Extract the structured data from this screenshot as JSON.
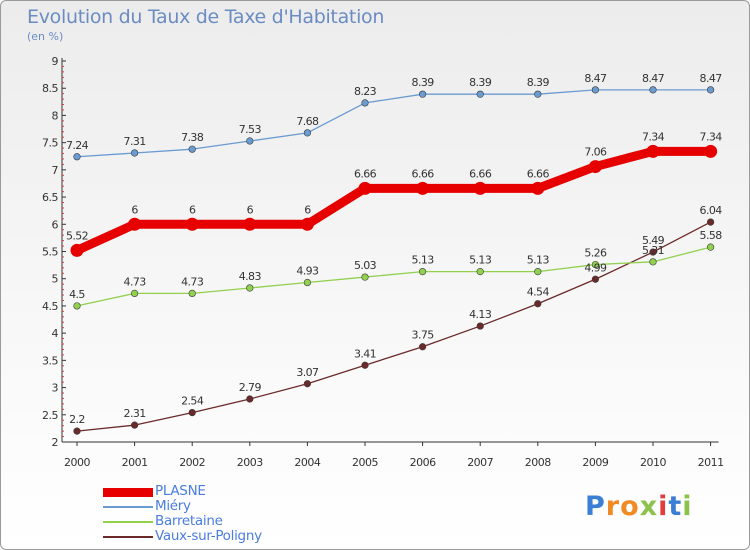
{
  "title": "Evolution du Taux de Taxe d'Habitation",
  "unit": "(en %)",
  "brand": "Proxiti",
  "chart_data": {
    "type": "line",
    "x": [
      "2000",
      "2001",
      "2002",
      "2003",
      "2004",
      "2005",
      "2006",
      "2007",
      "2008",
      "2009",
      "2010",
      "2011"
    ],
    "yticks": [
      "2",
      "2.5",
      "3",
      "3.5",
      "4",
      "4.5",
      "5",
      "5.5",
      "6",
      "6.5",
      "7",
      "7.5",
      "8",
      "8.5",
      "9"
    ],
    "ylim": [
      2,
      9
    ],
    "grid": false,
    "legend": "bottom-left",
    "series": [
      {
        "name": "PLASNE",
        "color": "#e60000",
        "values": [
          5.52,
          6,
          6,
          6,
          6,
          6.66,
          6.66,
          6.66,
          6.66,
          7.06,
          7.34,
          7.34
        ],
        "labels": [
          "5.52",
          "6",
          "6",
          "6",
          "6",
          "6.66",
          "6.66",
          "6.66",
          "6.66",
          "7.06",
          "7.34",
          "7.34"
        ]
      },
      {
        "name": "Miéry",
        "color": "#6a9bd1",
        "values": [
          7.24,
          7.31,
          7.38,
          7.53,
          7.68,
          8.23,
          8.39,
          8.39,
          8.39,
          8.47,
          8.47,
          8.47
        ],
        "labels": [
          "7.24",
          "7.31",
          "7.38",
          "7.53",
          "7.68",
          "8.23",
          "8.39",
          "8.39",
          "8.39",
          "8.47",
          "8.47",
          "8.47"
        ]
      },
      {
        "name": "Barretaine",
        "color": "#92d050",
        "values": [
          4.5,
          4.73,
          4.73,
          4.83,
          4.93,
          5.03,
          5.13,
          5.13,
          5.13,
          5.26,
          5.31,
          5.58
        ],
        "labels": [
          "4.5",
          "4.73",
          "4.73",
          "4.83",
          "4.93",
          "5.03",
          "5.13",
          "5.13",
          "5.13",
          "5.26",
          "5.31",
          "5.58"
        ]
      },
      {
        "name": "Vaux-sur-Poligny",
        "color": "#6b2a2a",
        "values": [
          2.2,
          2.31,
          2.54,
          2.79,
          3.07,
          3.41,
          3.75,
          4.13,
          4.54,
          4.99,
          5.49,
          6.04
        ],
        "labels": [
          "2.2",
          "2.31",
          "2.54",
          "2.79",
          "3.07",
          "3.41",
          "3.75",
          "4.13",
          "4.54",
          "4.99",
          "5.49",
          "6.04"
        ]
      }
    ]
  }
}
